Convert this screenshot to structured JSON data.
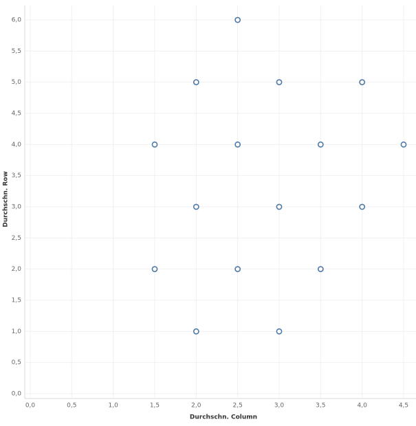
{
  "chart_data": {
    "type": "scatter",
    "x_label": "Durchschn. Column",
    "y_label": "Durchschn. Row",
    "x": [
      2.5,
      2,
      3,
      4,
      1.5,
      2.5,
      3.5,
      4.5,
      2,
      3,
      4,
      1.5,
      2.5,
      3.5,
      2,
      3
    ],
    "values": [
      6,
      5,
      5,
      5,
      4,
      4,
      4,
      4,
      3,
      3,
      3,
      2,
      2,
      2,
      1,
      1
    ],
    "color": "#4e79a7",
    "xlim": [
      0,
      4.5
    ],
    "ylim": [
      0,
      6
    ],
    "xticks": [
      {
        "value": 0,
        "label": "0,0"
      },
      {
        "value": 0.5,
        "label": "0,5"
      },
      {
        "value": 1,
        "label": "1,0"
      },
      {
        "value": 1.5,
        "label": "1,5"
      },
      {
        "value": 2,
        "label": "2,0"
      },
      {
        "value": 2.5,
        "label": "2,5"
      },
      {
        "value": 3,
        "label": "3,0"
      },
      {
        "value": 3.5,
        "label": "3,5"
      },
      {
        "value": 4,
        "label": "4,0"
      },
      {
        "value": 4.5,
        "label": "4,5"
      }
    ],
    "yticks": [
      {
        "value": 0,
        "label": "0,0"
      },
      {
        "value": 0.5,
        "label": "0,5"
      },
      {
        "value": 1,
        "label": "1,0"
      },
      {
        "value": 1.5,
        "label": "1,5"
      },
      {
        "value": 2,
        "label": "2,0"
      },
      {
        "value": 2.5,
        "label": "2,5"
      },
      {
        "value": 3,
        "label": "3,0"
      },
      {
        "value": 3.5,
        "label": "3,5"
      },
      {
        "value": 4,
        "label": "4,0"
      },
      {
        "value": 4.5,
        "label": "4,5"
      },
      {
        "value": 5,
        "label": "5,0"
      },
      {
        "value": 5.5,
        "label": "5,5"
      },
      {
        "value": 6,
        "label": "6,0"
      }
    ],
    "grid": true
  }
}
